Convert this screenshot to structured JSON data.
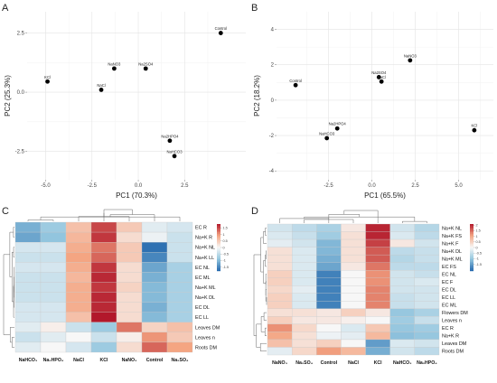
{
  "panels": {
    "a": "A",
    "b": "B",
    "c": "C",
    "d": "D"
  },
  "chart_data": [
    {
      "type": "scatter",
      "panel": "A",
      "xlabel": "PC1 (70.3%)",
      "ylabel": "PC2 (25.3%)",
      "xlim": [
        -6.0,
        5.8
      ],
      "ylim": [
        -3.7,
        3.4
      ],
      "xticks": [
        -5.0,
        -2.5,
        0.0,
        2.5
      ],
      "xtick_labels": [
        "-5.0",
        "-2.5",
        "0.0",
        "2.5"
      ],
      "yticks": [
        -2.5,
        0.0,
        2.5
      ],
      "ytick_labels": [
        "-2.5",
        "0.0",
        "2.5"
      ],
      "grid": true,
      "points": [
        {
          "label": "Control",
          "x": 4.45,
          "y": 2.5
        },
        {
          "label": "KCl",
          "x": -4.9,
          "y": 0.45
        },
        {
          "label": "NaNO3",
          "x": -1.3,
          "y": 1.0
        },
        {
          "label": "NaCl",
          "x": -2.0,
          "y": 0.1
        },
        {
          "label": "Na2SO4",
          "x": 0.4,
          "y": 1.0
        },
        {
          "label": "Na2HPO4",
          "x": 1.7,
          "y": -2.05
        },
        {
          "label": "NaHCO3",
          "x": 1.95,
          "y": -2.7
        }
      ]
    },
    {
      "type": "scatter",
      "panel": "B",
      "xlabel": "PC1 (65.5%)",
      "ylabel": "PC2 (18.2%)",
      "xlim": [
        -5.5,
        7.0
      ],
      "ylim": [
        -4.5,
        5.0
      ],
      "xticks": [
        -2.5,
        0.0,
        2.5,
        5.0
      ],
      "xtick_labels": [
        "-2.5",
        "0.0",
        "2.5",
        "5.0"
      ],
      "yticks": [
        -4,
        -2,
        0,
        2,
        4
      ],
      "ytick_labels": [
        "-4",
        "-2",
        "0",
        "2",
        "4"
      ],
      "grid": true,
      "points": [
        {
          "label": "NaNO3",
          "x": 2.2,
          "y": 2.25
        },
        {
          "label": "Na2SO4",
          "x": 0.4,
          "y": 1.3
        },
        {
          "label": "NaCl",
          "x": 0.55,
          "y": 1.05
        },
        {
          "label": "Control",
          "x": -4.4,
          "y": 0.85
        },
        {
          "label": "Na2HPO4",
          "x": -2.0,
          "y": -1.6
        },
        {
          "label": "NaHCO3",
          "x": -2.6,
          "y": -2.15
        },
        {
          "label": "KCl",
          "x": 5.9,
          "y": -1.7
        }
      ]
    },
    {
      "type": "heatmap",
      "panel": "C",
      "columns": [
        "NaHCO3",
        "Na2HPO4",
        "NaCl",
        "KCl",
        "NaNO3",
        "Control",
        "Na2SO4"
      ],
      "column_labels": [
        "NaHCO₃",
        "Na₂HPO₄",
        "NaCl",
        "KCl",
        "NaNO₃",
        "Control",
        "Na₂SO₄"
      ],
      "rows": [
        "EC R",
        "Na+K R",
        "Na+K NL",
        "Na+K LL",
        "EC NL",
        "EC ML",
        "Na+K ML",
        "Na+K DL",
        "EC DL",
        "EC LL",
        "Leaves DM",
        "Leaves n",
        "Roots DM"
      ],
      "values": [
        [
          -1.1,
          -0.8,
          0.6,
          1.5,
          0.5,
          -0.2,
          -0.3
        ],
        [
          -1.2,
          -0.9,
          0.7,
          1.6,
          0.3,
          -0.1,
          -0.4
        ],
        [
          -0.3,
          -0.3,
          0.8,
          1.2,
          0.5,
          -1.7,
          -0.4
        ],
        [
          -0.4,
          -0.4,
          0.9,
          1.3,
          0.5,
          -1.5,
          -0.4
        ],
        [
          -0.3,
          -0.3,
          0.8,
          1.6,
          0.3,
          -1.2,
          -0.7
        ],
        [
          -0.4,
          -0.4,
          0.7,
          1.7,
          0.3,
          -1.1,
          -0.7
        ],
        [
          -0.4,
          -0.4,
          0.8,
          1.6,
          0.4,
          -1.0,
          -0.7
        ],
        [
          -0.4,
          -0.4,
          0.8,
          1.7,
          0.3,
          -1.0,
          -0.7
        ],
        [
          -0.3,
          -0.3,
          0.8,
          1.7,
          0.3,
          -1.1,
          -0.7
        ],
        [
          -0.3,
          -0.3,
          0.6,
          1.8,
          0.3,
          -1.0,
          -0.7
        ],
        [
          -0.2,
          0.1,
          -0.4,
          -0.8,
          1.2,
          0.4,
          0.6
        ],
        [
          -0.4,
          -0.2,
          0.0,
          -0.4,
          0.1,
          1.0,
          0.5
        ],
        [
          -0.2,
          0.0,
          -0.3,
          -0.8,
          0.3,
          1.3,
          0.9
        ]
      ],
      "legend_ticks": [
        1.5,
        1,
        0.5,
        0,
        -0.5,
        -1,
        -1.5
      ],
      "legend_tick_labels": [
        "1.5",
        "1",
        "0.5",
        "0",
        "-0.5",
        "-1",
        "-1.5"
      ]
    },
    {
      "type": "heatmap",
      "panel": "D",
      "columns": [
        "NaNO3",
        "Na2SO4",
        "Control",
        "NaCl",
        "KCl",
        "NaHCO3",
        "Na2HPO4"
      ],
      "column_labels": [
        "NaNO₃",
        "Na₂SO₄",
        "Control",
        "NaCl",
        "KCl",
        "NaHCO₃",
        "Na₂HPO₄"
      ],
      "rows": [
        "Na+K NL",
        "Na+K FS",
        "Na+K F",
        "Na+K DL",
        "Na+K ML",
        "EC FS",
        "EC NL",
        "EC F",
        "EC DL",
        "EC LL",
        "EC ML",
        "Flowers DM",
        "Leaves n",
        "EC R",
        "Na+K R",
        "Leaves DM",
        "Roots DM"
      ],
      "values": [
        [
          -0.4,
          -0.6,
          -0.8,
          0.2,
          2.0,
          -0.4,
          -0.7
        ],
        [
          -0.3,
          -0.5,
          -0.9,
          0.3,
          2.0,
          -0.3,
          -0.6
        ],
        [
          -0.2,
          -0.4,
          -1.2,
          0.3,
          1.8,
          0.2,
          -0.4
        ],
        [
          0.3,
          -0.3,
          -1.2,
          0.3,
          1.6,
          -0.6,
          -0.5
        ],
        [
          0.3,
          -0.3,
          -1.3,
          0.3,
          1.6,
          -0.7,
          -0.5
        ],
        [
          0.3,
          -0.3,
          -1.4,
          0.2,
          1.4,
          -0.6,
          -0.6
        ],
        [
          0.5,
          -0.3,
          -1.8,
          0.0,
          1.2,
          -0.4,
          -0.5
        ],
        [
          0.5,
          -0.3,
          -1.8,
          0.0,
          1.2,
          -0.4,
          -0.3
        ],
        [
          0.4,
          -0.2,
          -1.8,
          0.0,
          1.3,
          -0.4,
          -0.4
        ],
        [
          0.5,
          -0.3,
          -1.8,
          0.0,
          1.3,
          -0.5,
          -0.4
        ],
        [
          0.5,
          -0.3,
          -1.8,
          0.0,
          1.3,
          -0.5,
          -0.4
        ],
        [
          0.3,
          0.3,
          0.2,
          0.5,
          0.2,
          -1.0,
          -0.8
        ],
        [
          0.5,
          0.2,
          0.2,
          0.1,
          0.0,
          -0.9,
          -0.5
        ],
        [
          1.2,
          0.4,
          0.0,
          -0.3,
          0.6,
          -1.0,
          -0.9
        ],
        [
          1.0,
          0.3,
          -0.1,
          -0.2,
          0.8,
          -1.1,
          -1.0
        ],
        [
          0.7,
          0.3,
          0.5,
          0.0,
          -1.5,
          -0.3,
          -0.4
        ],
        [
          -0.2,
          0.4,
          1.1,
          0.8,
          -1.3,
          -0.4,
          -0.6
        ]
      ],
      "legend_ticks": [
        2,
        1.5,
        1,
        0.5,
        0,
        -0.5,
        -1,
        -1.5
      ],
      "legend_tick_labels": [
        "2",
        "1.5",
        "1",
        "0.5",
        "0",
        "-0.5",
        "-1",
        "-1.5"
      ]
    }
  ]
}
